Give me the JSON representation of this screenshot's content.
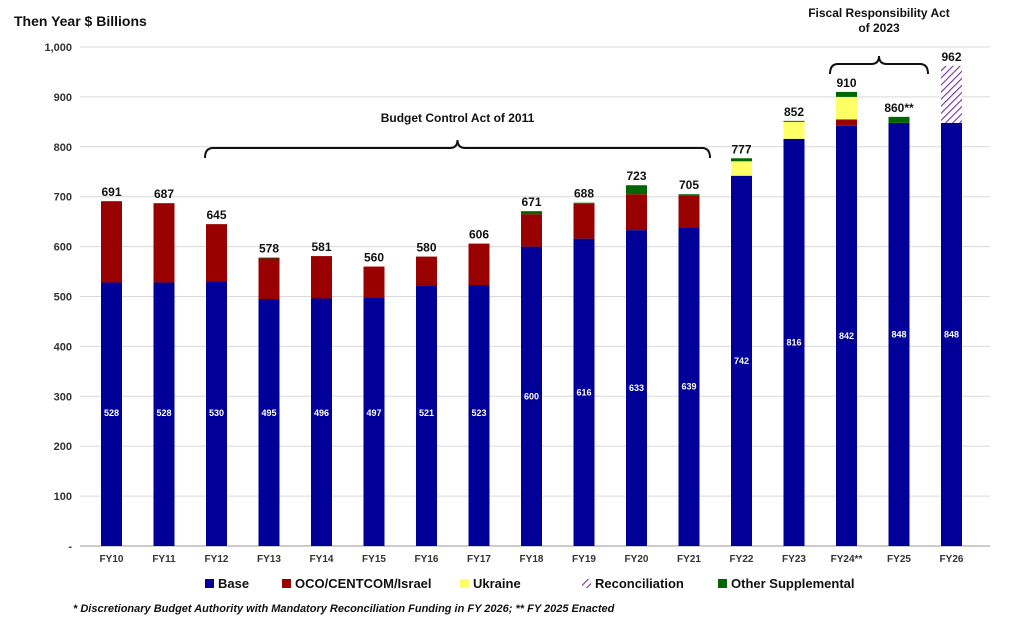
{
  "chart_data": {
    "type": "bar",
    "stacked": true,
    "ylabel": "Then Year $ Billions",
    "ylim": [
      0,
      1000
    ],
    "yticks": [
      "-",
      "100",
      "200",
      "300",
      "400",
      "500",
      "600",
      "700",
      "800",
      "900",
      "1,000"
    ],
    "grid": true,
    "categories": [
      "FY10",
      "FY11",
      "FY12",
      "FY13",
      "FY14",
      "FY15",
      "FY16",
      "FY17",
      "FY18",
      "FY19",
      "FY20",
      "FY21",
      "FY22",
      "FY23",
      "FY24**",
      "FY25",
      "FY26"
    ],
    "totals": [
      "691",
      "687",
      "645",
      "578",
      "581",
      "560",
      "580",
      "606",
      "671",
      "688",
      "723",
      "705",
      "777",
      "852",
      "910",
      "860**",
      "962"
    ],
    "series": [
      {
        "name": "Base",
        "color": "#000099",
        "values": [
          528,
          528,
          530,
          495,
          496,
          497,
          521,
          523,
          600,
          616,
          633,
          639,
          742,
          816,
          842,
          848,
          848
        ]
      },
      {
        "name": "OCO/CENTCOM/Israel",
        "color": "#990000",
        "values": [
          163,
          159,
          115,
          82,
          85,
          63,
          59,
          83,
          65,
          70,
          72,
          64,
          0,
          0,
          13,
          0,
          0
        ]
      },
      {
        "name": "Ukraine",
        "color": "#ffff66",
        "values": [
          0,
          0,
          0,
          0,
          0,
          0,
          0,
          0,
          0,
          0,
          0,
          0,
          29,
          34,
          45,
          0,
          0
        ]
      },
      {
        "name": "Reconciliation",
        "color": "#7030a0",
        "pattern": "hatched",
        "values": [
          0,
          0,
          0,
          0,
          0,
          0,
          0,
          0,
          0,
          0,
          0,
          0,
          0,
          0,
          0,
          0,
          114
        ]
      },
      {
        "name": "Other Supplemental",
        "color": "#006600",
        "values": [
          0,
          0,
          0,
          1,
          0,
          0,
          0,
          0,
          6,
          2,
          18,
          2,
          6,
          2,
          10,
          12,
          0
        ]
      }
    ],
    "annotations": [
      {
        "text": "Budget Control Act of 2011",
        "from": "FY12",
        "to": "FY21"
      },
      {
        "text": "Fiscal Responsibility Act",
        "text2": "of 2023",
        "from": "FY24**",
        "to": "FY25"
      }
    ],
    "legend_position": "bottom"
  },
  "footnote": "* Discretionary Budget Authority with Mandatory Reconciliation Funding in FY 2026; ** FY 2025 Enacted"
}
